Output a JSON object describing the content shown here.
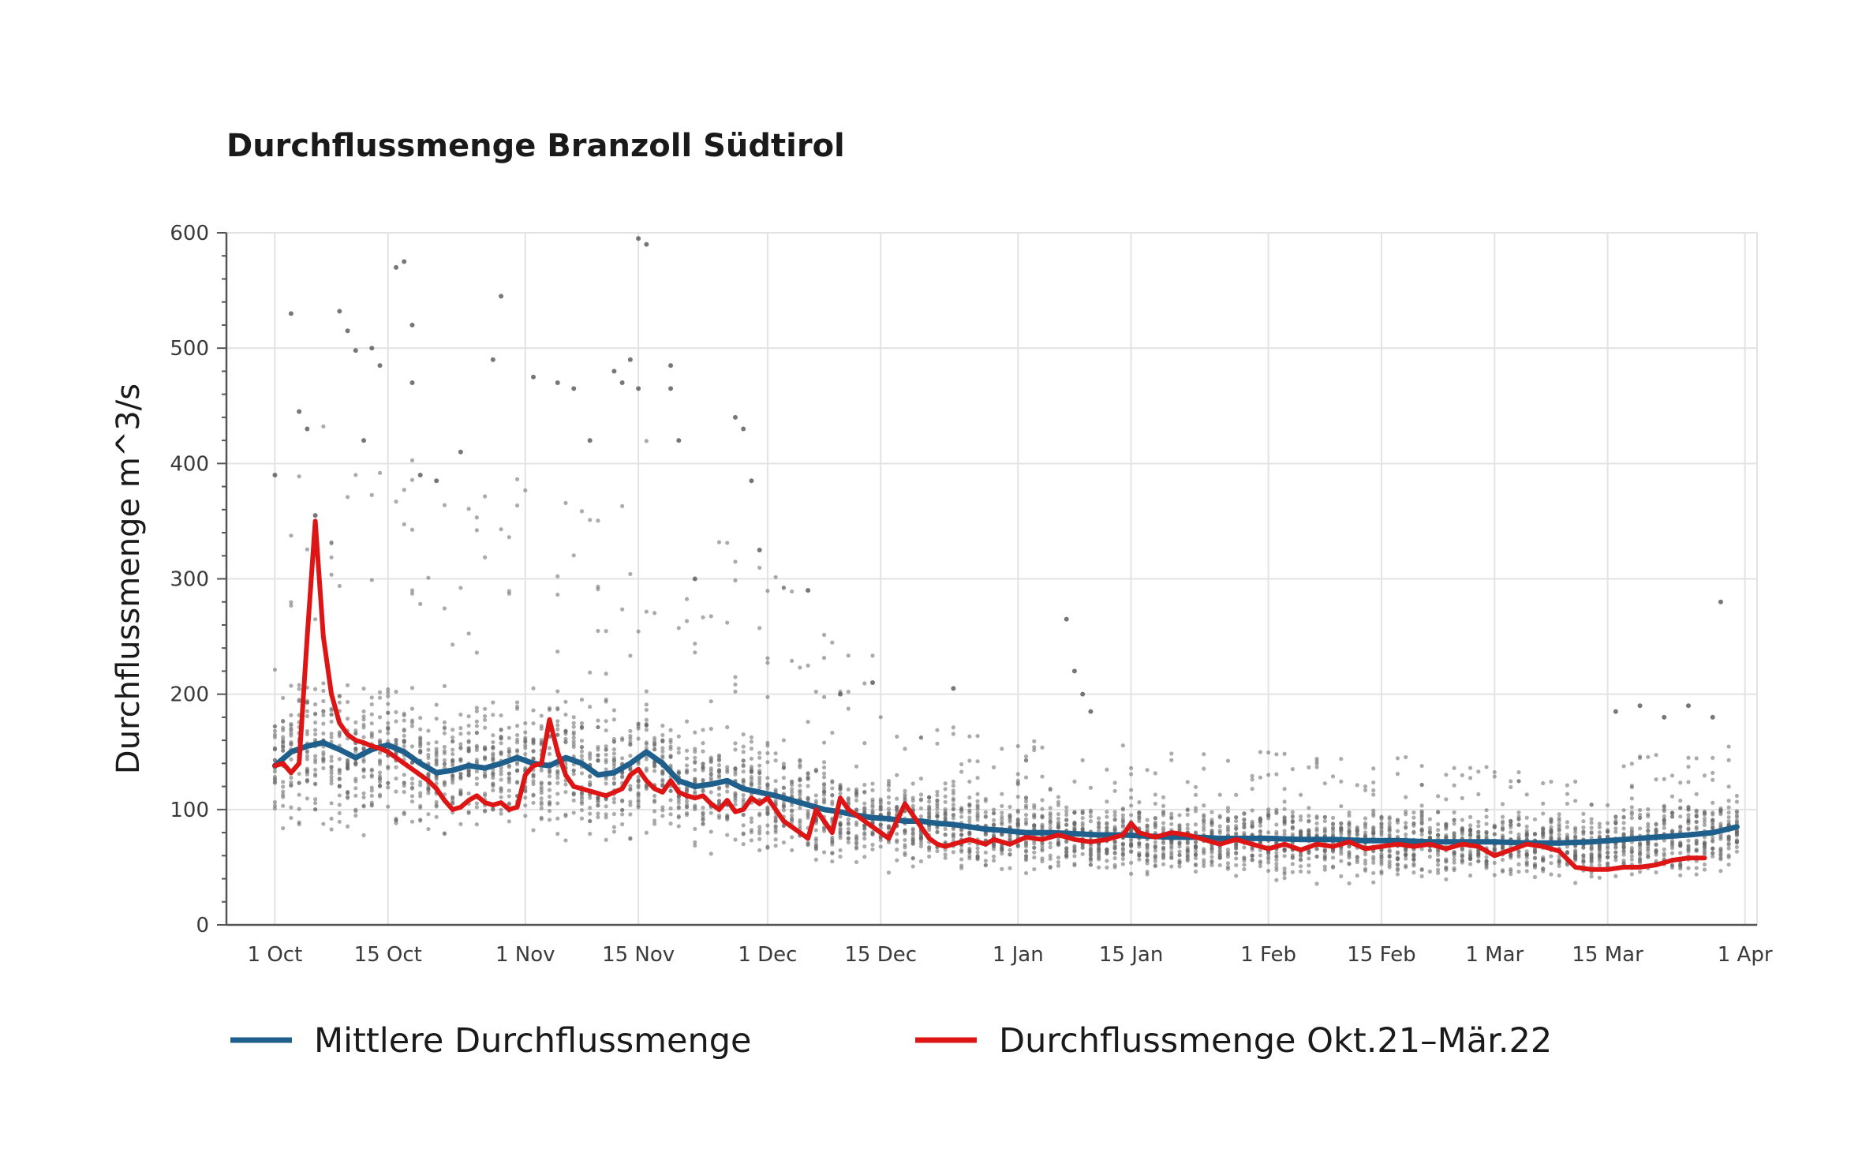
{
  "chart_data": {
    "type": "line",
    "title": "Durchflussmenge Branzoll Südtirol",
    "xlabel": "",
    "ylabel": "Durchflussmenge m^3/s",
    "ylim": [
      0,
      600
    ],
    "xlim": [
      "10-01",
      "04-01"
    ],
    "yticks": [
      0,
      100,
      200,
      300,
      400,
      500,
      600
    ],
    "xticks": [
      {
        "date": "10-01",
        "label": "1 Oct"
      },
      {
        "date": "10-15",
        "label": "15 Oct"
      },
      {
        "date": "11-01",
        "label": "1 Nov"
      },
      {
        "date": "11-15",
        "label": "15 Nov"
      },
      {
        "date": "12-01",
        "label": "1 Dec"
      },
      {
        "date": "12-15",
        "label": "15 Dec"
      },
      {
        "date": "01-01",
        "label": "1 Jan"
      },
      {
        "date": "01-15",
        "label": "15 Jan"
      },
      {
        "date": "02-01",
        "label": "1 Feb"
      },
      {
        "date": "02-15",
        "label": "15 Feb"
      },
      {
        "date": "03-01",
        "label": "1 Mar"
      },
      {
        "date": "03-15",
        "label": "15 Mar"
      },
      {
        "date": "04-01",
        "label": "1 Apr"
      }
    ],
    "grid": true,
    "legend_position": "bottom",
    "series": [
      {
        "name": "Mittlere Durchflussmenge",
        "color": "#1f5f8b",
        "points": [
          [
            "10-01",
            138
          ],
          [
            "10-03",
            150
          ],
          [
            "10-05",
            155
          ],
          [
            "10-07",
            158
          ],
          [
            "10-09",
            152
          ],
          [
            "10-11",
            145
          ],
          [
            "10-13",
            152
          ],
          [
            "10-15",
            156
          ],
          [
            "10-17",
            150
          ],
          [
            "10-19",
            140
          ],
          [
            "10-21",
            132
          ],
          [
            "10-23",
            134
          ],
          [
            "10-25",
            138
          ],
          [
            "10-27",
            136
          ],
          [
            "10-29",
            140
          ],
          [
            "10-31",
            145
          ],
          [
            "11-02",
            140
          ],
          [
            "11-04",
            138
          ],
          [
            "11-06",
            145
          ],
          [
            "11-08",
            140
          ],
          [
            "11-10",
            130
          ],
          [
            "11-12",
            132
          ],
          [
            "11-14",
            140
          ],
          [
            "11-16",
            150
          ],
          [
            "11-18",
            140
          ],
          [
            "11-20",
            125
          ],
          [
            "11-22",
            120
          ],
          [
            "11-24",
            122
          ],
          [
            "11-26",
            125
          ],
          [
            "11-28",
            118
          ],
          [
            "11-30",
            115
          ],
          [
            "12-02",
            112
          ],
          [
            "12-04",
            108
          ],
          [
            "12-06",
            104
          ],
          [
            "12-08",
            100
          ],
          [
            "12-10",
            98
          ],
          [
            "12-12",
            95
          ],
          [
            "12-14",
            93
          ],
          [
            "12-16",
            92
          ],
          [
            "12-18",
            90
          ],
          [
            "12-20",
            90
          ],
          [
            "12-22",
            88
          ],
          [
            "12-24",
            87
          ],
          [
            "12-26",
            85
          ],
          [
            "12-28",
            83
          ],
          [
            "12-30",
            82
          ],
          [
            "01-02",
            80
          ],
          [
            "01-05",
            80
          ],
          [
            "01-08",
            79
          ],
          [
            "01-11",
            78
          ],
          [
            "01-14",
            78
          ],
          [
            "01-17",
            77
          ],
          [
            "01-20",
            76
          ],
          [
            "01-23",
            76
          ],
          [
            "01-26",
            75
          ],
          [
            "01-29",
            75
          ],
          [
            "02-01",
            75
          ],
          [
            "02-05",
            74
          ],
          [
            "02-09",
            74
          ],
          [
            "02-13",
            73
          ],
          [
            "02-17",
            73
          ],
          [
            "02-21",
            72
          ],
          [
            "02-25",
            72
          ],
          [
            "03-01",
            72
          ],
          [
            "03-05",
            71
          ],
          [
            "03-09",
            71
          ],
          [
            "03-13",
            72
          ],
          [
            "03-17",
            74
          ],
          [
            "03-21",
            76
          ],
          [
            "03-25",
            78
          ],
          [
            "03-28",
            80
          ],
          [
            "03-31",
            85
          ]
        ]
      },
      {
        "name": "Durchflussmenge Okt.21–Mär.22",
        "color": "#dd1515",
        "points": [
          [
            "10-01",
            138
          ],
          [
            "10-02",
            140
          ],
          [
            "10-03",
            132
          ],
          [
            "10-04",
            140
          ],
          [
            "10-05",
            250
          ],
          [
            "10-06",
            350
          ],
          [
            "10-07",
            250
          ],
          [
            "10-08",
            200
          ],
          [
            "10-09",
            175
          ],
          [
            "10-10",
            165
          ],
          [
            "10-11",
            160
          ],
          [
            "10-12",
            158
          ],
          [
            "10-13",
            155
          ],
          [
            "10-14",
            153
          ],
          [
            "10-15",
            150
          ],
          [
            "10-16",
            145
          ],
          [
            "10-17",
            140
          ],
          [
            "10-18",
            135
          ],
          [
            "10-19",
            130
          ],
          [
            "10-20",
            125
          ],
          [
            "10-21",
            118
          ],
          [
            "10-22",
            108
          ],
          [
            "10-23",
            100
          ],
          [
            "10-24",
            102
          ],
          [
            "10-25",
            108
          ],
          [
            "10-26",
            112
          ],
          [
            "10-27",
            106
          ],
          [
            "10-28",
            104
          ],
          [
            "10-29",
            106
          ],
          [
            "10-30",
            100
          ],
          [
            "10-31",
            102
          ],
          [
            "11-01",
            130
          ],
          [
            "11-02",
            138
          ],
          [
            "11-03",
            140
          ],
          [
            "11-04",
            178
          ],
          [
            "11-05",
            150
          ],
          [
            "11-06",
            130
          ],
          [
            "11-07",
            120
          ],
          [
            "11-08",
            118
          ],
          [
            "11-09",
            116
          ],
          [
            "11-10",
            114
          ],
          [
            "11-11",
            112
          ],
          [
            "11-12",
            115
          ],
          [
            "11-13",
            118
          ],
          [
            "11-14",
            130
          ],
          [
            "11-15",
            135
          ],
          [
            "11-16",
            125
          ],
          [
            "11-17",
            118
          ],
          [
            "11-18",
            115
          ],
          [
            "11-19",
            125
          ],
          [
            "11-20",
            115
          ],
          [
            "11-21",
            112
          ],
          [
            "11-22",
            110
          ],
          [
            "11-23",
            112
          ],
          [
            "11-24",
            105
          ],
          [
            "11-25",
            100
          ],
          [
            "11-26",
            108
          ],
          [
            "11-27",
            98
          ],
          [
            "11-28",
            100
          ],
          [
            "11-29",
            110
          ],
          [
            "11-30",
            105
          ],
          [
            "12-01",
            110
          ],
          [
            "12-02",
            100
          ],
          [
            "12-03",
            90
          ],
          [
            "12-04",
            85
          ],
          [
            "12-05",
            80
          ],
          [
            "12-06",
            75
          ],
          [
            "12-07",
            100
          ],
          [
            "12-08",
            90
          ],
          [
            "12-09",
            80
          ],
          [
            "12-10",
            110
          ],
          [
            "12-11",
            100
          ],
          [
            "12-12",
            95
          ],
          [
            "12-13",
            90
          ],
          [
            "12-14",
            85
          ],
          [
            "12-15",
            80
          ],
          [
            "12-16",
            75
          ],
          [
            "12-17",
            90
          ],
          [
            "12-18",
            105
          ],
          [
            "12-19",
            95
          ],
          [
            "12-20",
            85
          ],
          [
            "12-21",
            75
          ],
          [
            "12-22",
            70
          ],
          [
            "12-23",
            68
          ],
          [
            "12-24",
            70
          ],
          [
            "12-25",
            72
          ],
          [
            "12-26",
            74
          ],
          [
            "12-27",
            72
          ],
          [
            "12-28",
            70
          ],
          [
            "12-29",
            74
          ],
          [
            "12-30",
            72
          ],
          [
            "12-31",
            70
          ],
          [
            "01-02",
            76
          ],
          [
            "01-04",
            74
          ],
          [
            "01-06",
            78
          ],
          [
            "01-08",
            74
          ],
          [
            "01-10",
            72
          ],
          [
            "01-12",
            74
          ],
          [
            "01-14",
            78
          ],
          [
            "01-15",
            88
          ],
          [
            "01-16",
            80
          ],
          [
            "01-18",
            76
          ],
          [
            "01-20",
            80
          ],
          [
            "01-22",
            78
          ],
          [
            "01-24",
            74
          ],
          [
            "01-26",
            70
          ],
          [
            "01-28",
            74
          ],
          [
            "01-30",
            70
          ],
          [
            "02-01",
            66
          ],
          [
            "02-03",
            70
          ],
          [
            "02-05",
            65
          ],
          [
            "02-07",
            70
          ],
          [
            "02-09",
            68
          ],
          [
            "02-11",
            72
          ],
          [
            "02-13",
            66
          ],
          [
            "02-15",
            68
          ],
          [
            "02-17",
            70
          ],
          [
            "02-19",
            68
          ],
          [
            "02-21",
            70
          ],
          [
            "02-23",
            66
          ],
          [
            "02-25",
            70
          ],
          [
            "02-27",
            68
          ],
          [
            "03-01",
            60
          ],
          [
            "03-03",
            65
          ],
          [
            "03-05",
            70
          ],
          [
            "03-07",
            68
          ],
          [
            "03-09",
            64
          ],
          [
            "03-11",
            50
          ],
          [
            "03-13",
            48
          ],
          [
            "03-15",
            48
          ],
          [
            "03-17",
            50
          ],
          [
            "03-19",
            50
          ],
          [
            "03-21",
            52
          ],
          [
            "03-23",
            56
          ],
          [
            "03-25",
            58
          ],
          [
            "03-27",
            58
          ]
        ]
      }
    ],
    "scatter_outliers": [
      [
        "10-01",
        390
      ],
      [
        "10-03",
        530
      ],
      [
        "10-04",
        445
      ],
      [
        "10-05",
        430
      ],
      [
        "10-06",
        355
      ],
      [
        "10-09",
        532
      ],
      [
        "10-10",
        515
      ],
      [
        "10-11",
        498
      ],
      [
        "10-12",
        420
      ],
      [
        "10-13",
        500
      ],
      [
        "10-14",
        485
      ],
      [
        "10-16",
        570
      ],
      [
        "10-17",
        575
      ],
      [
        "10-18",
        520
      ],
      [
        "10-18",
        470
      ],
      [
        "10-19",
        390
      ],
      [
        "10-21",
        385
      ],
      [
        "10-24",
        410
      ],
      [
        "10-28",
        490
      ],
      [
        "10-29",
        545
      ],
      [
        "11-02",
        475
      ],
      [
        "11-05",
        470
      ],
      [
        "11-07",
        465
      ],
      [
        "11-09",
        420
      ],
      [
        "11-12",
        480
      ],
      [
        "11-13",
        470
      ],
      [
        "11-14",
        490
      ],
      [
        "11-15",
        595
      ],
      [
        "11-15",
        465
      ],
      [
        "11-16",
        590
      ],
      [
        "11-19",
        485
      ],
      [
        "11-19",
        465
      ],
      [
        "11-20",
        420
      ],
      [
        "11-22",
        300
      ],
      [
        "11-27",
        440
      ],
      [
        "11-28",
        430
      ],
      [
        "11-29",
        385
      ],
      [
        "11-30",
        325
      ],
      [
        "12-06",
        290
      ],
      [
        "12-10",
        200
      ],
      [
        "12-14",
        210
      ],
      [
        "12-24",
        205
      ],
      [
        "01-07",
        265
      ],
      [
        "01-08",
        220
      ],
      [
        "01-09",
        200
      ],
      [
        "01-10",
        185
      ],
      [
        "03-16",
        185
      ],
      [
        "03-19",
        190
      ],
      [
        "03-22",
        180
      ],
      [
        "03-25",
        190
      ],
      [
        "03-29",
        280
      ],
      [
        "03-28",
        180
      ]
    ],
    "scatter_dense_range_per_day": [
      35,
      150
    ]
  },
  "legend": {
    "items": [
      {
        "label": "Mittlere Durchflussmenge",
        "color": "#1f5f8b"
      },
      {
        "label": "Durchflussmenge Okt.21–Mär.22",
        "color": "#dd1515"
      }
    ]
  }
}
